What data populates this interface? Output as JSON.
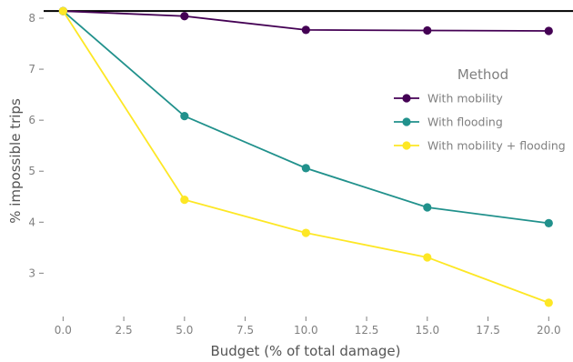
{
  "chart_data": {
    "type": "line",
    "xlabel": "Budget (% of total damage)",
    "ylabel": "% impossible trips",
    "xlim": [
      -0.8,
      21
    ],
    "ylim": [
      2.15,
      8.25
    ],
    "x_ticks": [
      0.0,
      2.5,
      5.0,
      7.5,
      10.0,
      12.5,
      15.0,
      17.5,
      20.0
    ],
    "x_tick_labels": [
      "0.0",
      "2.5",
      "5.0",
      "7.5",
      "10.0",
      "12.5",
      "15.0",
      "17.5",
      "20.0"
    ],
    "y_ticks": [
      3,
      4,
      5,
      6,
      7,
      8
    ],
    "y_tick_labels": [
      "3",
      "4",
      "5",
      "6",
      "7",
      "8"
    ],
    "grid": false,
    "reference_line": {
      "y": 8.14,
      "color": "#000000"
    },
    "legend": {
      "title": "Method",
      "placement": "right"
    },
    "x": [
      0,
      5,
      10,
      15,
      20
    ],
    "series": [
      {
        "name": "With mobility",
        "color": "#440154",
        "values": [
          8.14,
          8.04,
          7.77,
          7.76,
          7.75
        ]
      },
      {
        "name": "With flooding",
        "color": "#21918c",
        "values": [
          8.14,
          6.08,
          5.06,
          4.29,
          3.98
        ]
      },
      {
        "name": "With mobility + flooding",
        "color": "#fde725",
        "values": [
          8.14,
          4.44,
          3.79,
          3.31,
          2.42
        ]
      }
    ]
  }
}
